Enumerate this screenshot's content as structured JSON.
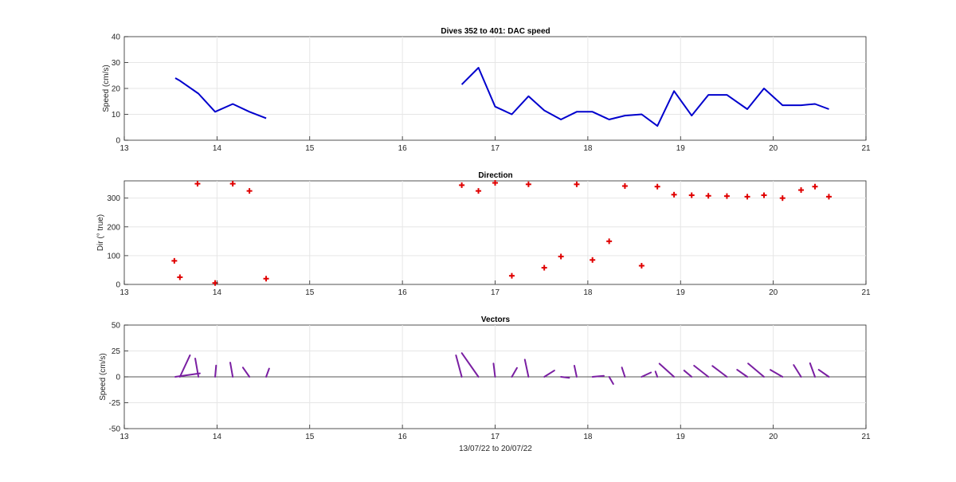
{
  "colors": {
    "speed_line": "#0000cd",
    "direction_marker": "#e00000",
    "vectors": "#7a1fa2",
    "zero_line": "#262626",
    "grid": "#e6e6e6"
  },
  "chart_data": [
    {
      "id": "speed",
      "type": "line",
      "title": "Dives 352 to 401: DAC speed",
      "xlabel": "",
      "ylabel": "Speed (cm/s)",
      "xlim": [
        13,
        21
      ],
      "ylim": [
        0,
        40
      ],
      "xticks": [
        "13",
        "14",
        "15",
        "16",
        "17",
        "18",
        "19",
        "20",
        "21"
      ],
      "yticks": [
        "0",
        "10",
        "20",
        "30",
        "40"
      ],
      "grid": true,
      "segments": [
        {
          "x": [
            13.55,
            13.6,
            13.8,
            13.98,
            14.17,
            14.35,
            14.53
          ],
          "y": [
            24,
            23,
            18,
            11,
            14,
            11,
            8.5
          ]
        },
        {
          "x": [
            16.64,
            16.82,
            17.0,
            17.18,
            17.36,
            17.53,
            17.71,
            17.88,
            18.05,
            18.23,
            18.4,
            18.58,
            18.75,
            18.93,
            19.12,
            19.3,
            19.5,
            19.72,
            19.9,
            20.1,
            20.3,
            20.45,
            20.6
          ],
          "y": [
            21.5,
            28,
            13,
            10,
            17,
            11.5,
            8,
            11,
            11,
            8,
            9.5,
            10,
            5.5,
            19,
            9.5,
            17.5,
            17.5,
            12,
            20,
            13.5,
            13.5,
            14,
            12
          ]
        }
      ]
    },
    {
      "id": "direction",
      "type": "scatter",
      "title": "Direction",
      "xlabel": "",
      "ylabel": "Dir (° true)",
      "xlim": [
        13,
        21
      ],
      "ylim": [
        0,
        360
      ],
      "xticks": [
        "13",
        "14",
        "15",
        "16",
        "17",
        "18",
        "19",
        "20",
        "21"
      ],
      "yticks": [
        "0",
        "100",
        "200",
        "300"
      ],
      "grid": true,
      "x": [
        13.54,
        13.6,
        13.79,
        13.98,
        14.17,
        14.35,
        14.53,
        16.64,
        16.82,
        17.0,
        17.18,
        17.36,
        17.53,
        17.71,
        17.88,
        18.05,
        18.23,
        18.4,
        18.58,
        18.75,
        18.93,
        19.12,
        19.3,
        19.5,
        19.72,
        19.9,
        20.1,
        20.3,
        20.45,
        20.6
      ],
      "y": [
        82,
        25,
        350,
        5,
        350,
        325,
        20,
        345,
        325,
        353,
        30,
        348,
        58,
        97,
        348,
        85,
        150,
        342,
        65,
        340,
        312,
        310,
        308,
        307,
        305,
        310,
        300,
        328,
        340,
        305
      ]
    },
    {
      "id": "vectors",
      "type": "vector",
      "title": "Vectors",
      "xlabel": "13/07/22 to 20/07/22",
      "ylabel": "Speed (cm/s)",
      "xlim": [
        13,
        21
      ],
      "ylim": [
        -50,
        50
      ],
      "xticks": [
        "13",
        "14",
        "15",
        "16",
        "17",
        "18",
        "19",
        "20",
        "21"
      ],
      "yticks": [
        "-50",
        "-25",
        "0",
        "25",
        "50"
      ],
      "grid": true,
      "x": [
        13.55,
        13.6,
        13.8,
        13.98,
        14.17,
        14.35,
        14.53,
        16.64,
        16.82,
        17.0,
        17.18,
        17.36,
        17.53,
        17.71,
        17.88,
        18.05,
        18.23,
        18.4,
        18.58,
        18.75,
        18.93,
        19.12,
        19.3,
        19.5,
        19.72,
        19.9,
        20.1,
        20.3,
        20.45,
        20.6
      ],
      "speed": [
        24,
        23,
        18,
        11,
        14,
        11,
        8.5,
        21.5,
        28,
        13,
        10,
        17,
        11.5,
        8,
        11,
        11,
        8,
        9.5,
        10,
        5.5,
        19,
        9.5,
        17.5,
        17.5,
        12,
        20,
        13.5,
        13.5,
        14,
        12
      ],
      "direction": [
        82,
        25,
        350,
        5,
        350,
        325,
        20,
        345,
        325,
        353,
        30,
        348,
        58,
        97,
        348,
        85,
        150,
        342,
        65,
        340,
        312,
        310,
        308,
        307,
        305,
        310,
        300,
        328,
        340,
        305
      ]
    }
  ]
}
